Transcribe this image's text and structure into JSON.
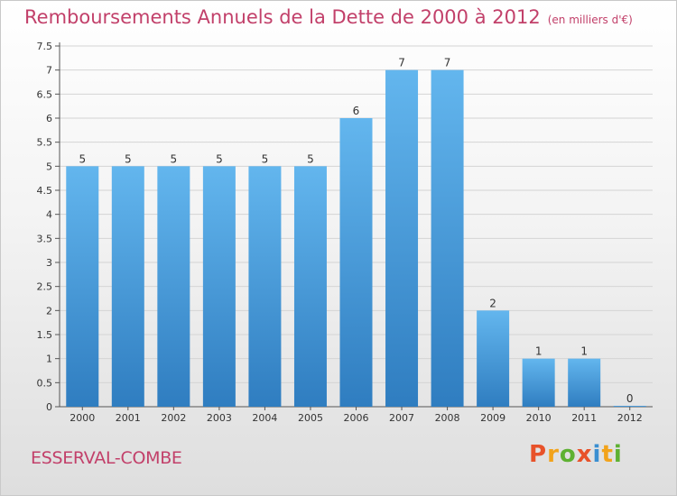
{
  "header": {
    "title": "Remboursements Annuels de la Dette de 2000 à 2012",
    "unit": "(en milliers d'€)"
  },
  "footer": {
    "commune": "ESSERVAL-COMBE",
    "brand": "Proxiti",
    "brand_colors": [
      "#e8522a",
      "#f2a31b",
      "#5eb132",
      "#e8522a",
      "#3a8fd1",
      "#f2a31b",
      "#5eb132"
    ]
  },
  "colors": {
    "bar_top": "#63b6ee",
    "bar_bottom": "#2f7dc0",
    "title": "#c2406a",
    "grid": "#d4d4d4"
  },
  "chart_data": {
    "type": "bar",
    "title": "Remboursements Annuels de la Dette de 2000 à 2012",
    "subtitle": "(en milliers d'€)",
    "xlabel": "",
    "ylabel": "",
    "categories": [
      "2000",
      "2001",
      "2002",
      "2003",
      "2004",
      "2005",
      "2006",
      "2007",
      "2008",
      "2009",
      "2010",
      "2011",
      "2012"
    ],
    "values": [
      5,
      5,
      5,
      5,
      5,
      5,
      6,
      7,
      7,
      2,
      1,
      1,
      0
    ],
    "ylim": [
      0,
      7.5
    ],
    "yticks": [
      "0",
      "0.5",
      "1",
      "1.5",
      "2",
      "2.5",
      "3",
      "3.5",
      "4",
      "4.5",
      "5",
      "5.5",
      "6",
      "6.5",
      "7",
      "7.5"
    ],
    "grid": true
  }
}
